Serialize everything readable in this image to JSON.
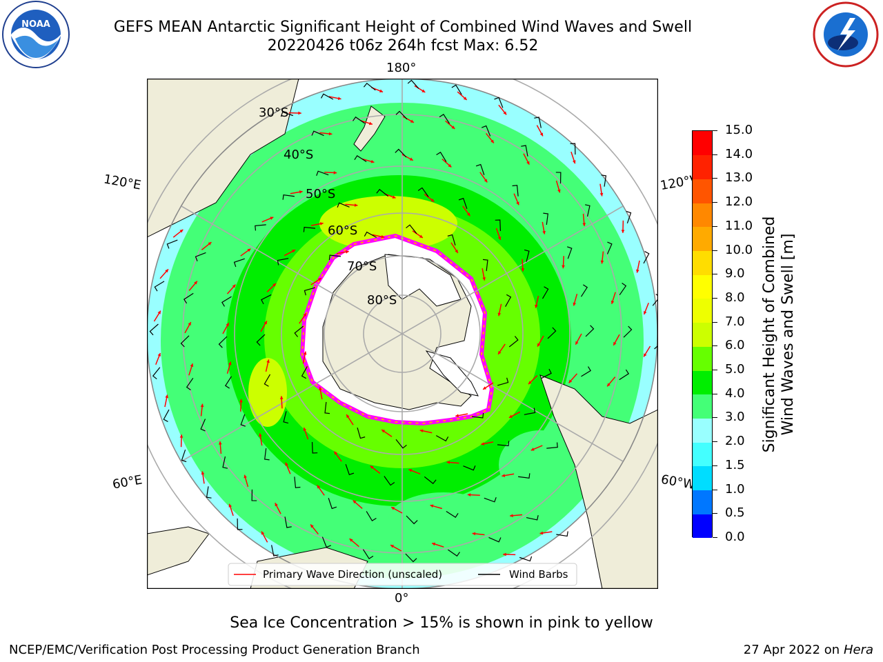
{
  "title": {
    "line1": "GEFS MEAN Antarctic Significant Height of Combined Wind Waves and Swell",
    "line2": "20220426 t06z 264h fcst   Max: 6.52"
  },
  "map": {
    "lon_labels": [
      "180°",
      "120°E",
      "120°W",
      "60°E",
      "60°W",
      "0°"
    ],
    "lat_labels": [
      "30°S",
      "40°S",
      "50°S",
      "60°S",
      "70°S",
      "80°S"
    ],
    "legend": {
      "wave_direction": "Primary Wave Direction (unscaled)",
      "wind_barbs": "Wind Barbs"
    },
    "colors": {
      "land": "#efedd9",
      "ice": "#ffffff",
      "ice_edge": "#ff00ff",
      "arrow": "#ff0000",
      "barb": "#000000"
    }
  },
  "colorbar": {
    "label_line1": "Significant Height of Combined",
    "label_line2": "Wind Waves and Swell [m]",
    "ticks": [
      "0.0",
      "0.5",
      "1.0",
      "1.5",
      "2.0",
      "3.0",
      "4.0",
      "5.0",
      "6.0",
      "7.0",
      "8.0",
      "9.0",
      "10.0",
      "11.0",
      "12.0",
      "13.0",
      "14.0",
      "15.0"
    ],
    "colors": [
      "#0000ff",
      "#0077ff",
      "#00ddff",
      "#44ffff",
      "#99ffff",
      "#44ff77",
      "#00ee00",
      "#66ff00",
      "#ccff00",
      "#eeff00",
      "#ffff00",
      "#ffdd00",
      "#ffaa00",
      "#ff8800",
      "#ff5500",
      "#ff2200",
      "#ff0000"
    ]
  },
  "notes": {
    "sea_ice": "Sea Ice Concentration > 15% is shown in pink to yellow"
  },
  "footer": {
    "left": "NCEP/EMC/Verification Post Processing Product Generation Branch",
    "date": "27 Apr 2022 on",
    "host": "Hera"
  }
}
